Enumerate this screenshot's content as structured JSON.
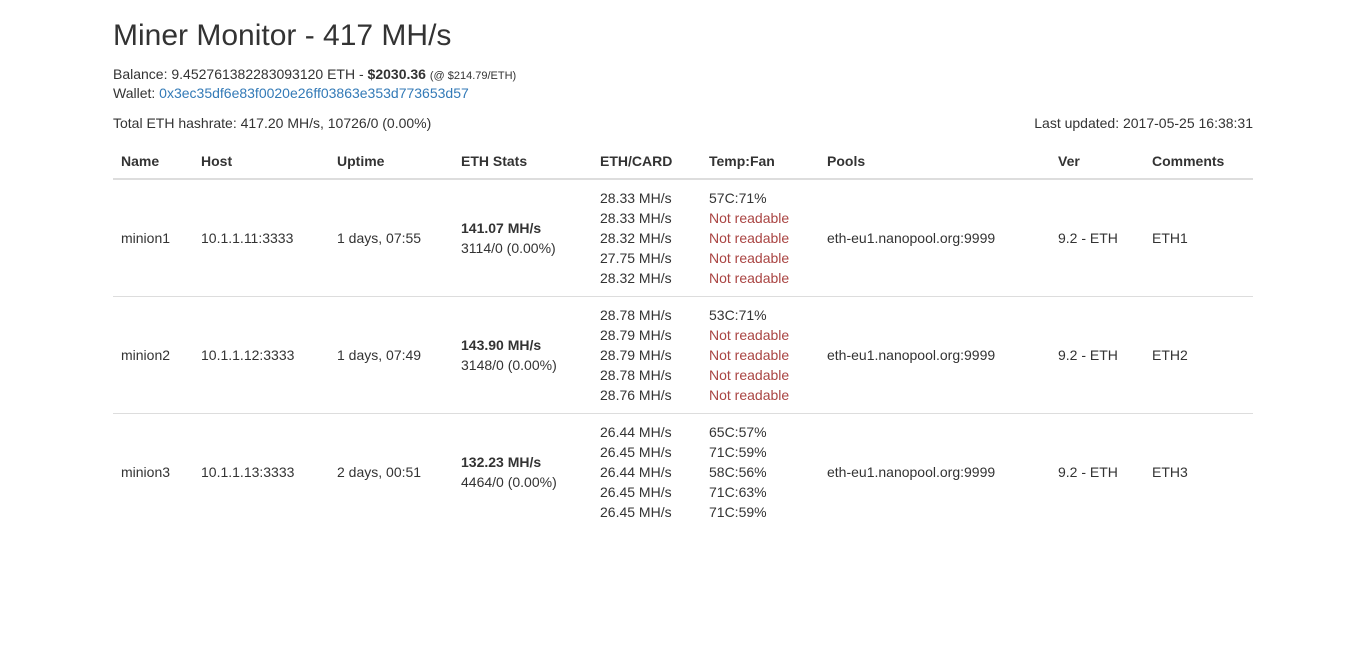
{
  "header": {
    "title": "Miner Monitor - 417 MH/s",
    "balance_label": "Balance:",
    "balance_eth": "9.452761382283093120 ETH",
    "balance_sep": "-",
    "balance_usd": "$2030.36",
    "balance_rate": "(@ $214.79/ETH)",
    "wallet_label": "Wallet:",
    "wallet_address": "0x3ec35df6e83f0020e26ff03863e353d773653d57"
  },
  "summary": {
    "total": "Total ETH hashrate: 417.20 MH/s, 10726/0 (0.00%)",
    "last_updated": "Last updated: 2017-05-25 16:38:31"
  },
  "table": {
    "columns": [
      "Name",
      "Host",
      "Uptime",
      "ETH Stats",
      "ETH/CARD",
      "Temp:Fan",
      "Pools",
      "Ver",
      "Comments"
    ],
    "rows": [
      {
        "name": "minion1",
        "host": "10.1.1.11:3333",
        "uptime": "1 days, 07:55",
        "hashrate": "141.07 MH/s",
        "shares": "3114/0 (0.00%)",
        "cards": [
          "28.33 MH/s",
          "28.33 MH/s",
          "28.32 MH/s",
          "27.75 MH/s",
          "28.32 MH/s"
        ],
        "temps": [
          "57C:71%",
          "Not readable",
          "Not readable",
          "Not readable",
          "Not readable"
        ],
        "pool": "eth-eu1.nanopool.org:9999",
        "ver": "9.2 - ETH",
        "comment": "ETH1"
      },
      {
        "name": "minion2",
        "host": "10.1.1.12:3333",
        "uptime": "1 days, 07:49",
        "hashrate": "143.90 MH/s",
        "shares": "3148/0 (0.00%)",
        "cards": [
          "28.78 MH/s",
          "28.79 MH/s",
          "28.79 MH/s",
          "28.78 MH/s",
          "28.76 MH/s"
        ],
        "temps": [
          "53C:71%",
          "Not readable",
          "Not readable",
          "Not readable",
          "Not readable"
        ],
        "pool": "eth-eu1.nanopool.org:9999",
        "ver": "9.2 - ETH",
        "comment": "ETH2"
      },
      {
        "name": "minion3",
        "host": "10.1.1.13:3333",
        "uptime": "2 days, 00:51",
        "hashrate": "132.23 MH/s",
        "shares": "4464/0 (0.00%)",
        "cards": [
          "26.44 MH/s",
          "26.45 MH/s",
          "26.44 MH/s",
          "26.45 MH/s",
          "26.45 MH/s"
        ],
        "temps": [
          "65C:57%",
          "71C:59%",
          "58C:56%",
          "71C:63%",
          "71C:59%"
        ],
        "pool": "eth-eu1.nanopool.org:9999",
        "ver": "9.2 - ETH",
        "comment": "ETH3"
      }
    ]
  },
  "colors": {
    "text": "#333333",
    "link": "#337ab7",
    "warning": "#a94442",
    "border": "#dddddd"
  }
}
